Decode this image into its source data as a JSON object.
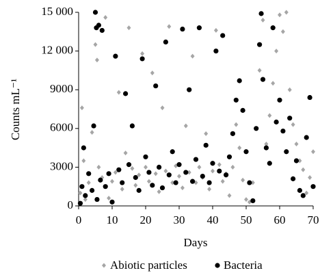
{
  "chart_data": {
    "type": "scatter",
    "ylabel": "Counts mL⁻¹",
    "xlabel": "Days",
    "xlim": [
      0,
      70
    ],
    "xticks": [
      0,
      10,
      20,
      30,
      40,
      50,
      60,
      70
    ],
    "ylim": [
      0,
      15000
    ],
    "yticks": [
      0,
      3000,
      6000,
      9000,
      {
        "value": 12000,
        "label": "12 000"
      },
      {
        "value": 15000,
        "label": "15 000"
      }
    ],
    "grid": false,
    "legend": "bottom",
    "series": [
      {
        "name": "Abiotic particles",
        "color": "#a6a6a6",
        "marker": "diamond",
        "x": [
          0.5,
          1,
          1.5,
          2,
          3,
          4,
          5,
          5.5,
          6,
          7,
          8,
          9,
          10,
          11,
          12,
          13,
          14,
          15,
          16,
          17,
          18,
          19,
          20,
          21,
          22,
          23,
          24,
          25,
          26,
          27,
          28,
          29,
          30,
          31,
          32,
          33,
          34,
          35,
          36,
          37,
          38,
          39,
          40,
          41,
          42,
          43,
          44,
          45,
          46,
          47,
          48,
          49,
          50,
          51,
          52,
          53,
          54,
          55,
          56,
          57,
          58,
          59,
          60,
          61,
          62,
          63,
          64,
          65,
          66,
          67,
          68,
          69,
          70
        ],
        "values": [
          1000,
          7600,
          3500,
          500,
          1800,
          5700,
          12500,
          11300,
          3000,
          2200,
          14600,
          600,
          1900,
          2600,
          8800,
          1300,
          4100,
          13800,
          2900,
          1600,
          2400,
          11800,
          3000,
          1900,
          10300,
          2500,
          1100,
          7600,
          2700,
          13900,
          1800,
          3100,
          2300,
          1400,
          6200,
          2600,
          11600,
          1800,
          3000,
          2200,
          5600,
          1300,
          2700,
          13600,
          3200,
          1900,
          2500,
          800,
          3000,
          6300,
          4500,
          2000,
          500,
          300,
          1800,
          6000,
          10500,
          14400,
          4800,
          7000,
          9500,
          12000,
          14800,
          13500,
          15000,
          9000,
          6300,
          4800,
          3500,
          2800,
          1000,
          2200,
          4200
        ]
      },
      {
        "name": "Bacteria",
        "color": "#000000",
        "marker": "circle",
        "x": [
          0.5,
          1,
          1.5,
          2,
          3,
          4,
          4.5,
          5,
          5.3,
          5.5,
          6,
          6.5,
          7,
          8,
          9,
          10,
          11,
          12,
          13,
          14,
          15,
          16,
          17,
          18,
          19,
          20,
          21,
          22,
          23,
          24,
          25,
          26,
          27,
          28,
          29,
          30,
          31,
          32,
          33,
          34,
          35,
          36,
          37,
          38,
          39,
          40,
          41,
          42,
          43,
          44,
          45,
          46,
          47,
          48,
          49,
          50,
          51,
          52,
          53,
          54,
          54.5,
          55,
          56,
          57,
          58,
          59,
          60,
          61,
          62,
          63,
          64,
          65,
          66,
          67,
          68,
          69,
          70
        ],
        "values": [
          200,
          1500,
          4500,
          800,
          2500,
          1200,
          6200,
          15000,
          13800,
          500,
          14000,
          2000,
          13600,
          1500,
          2500,
          300,
          11600,
          2800,
          1800,
          8700,
          3200,
          6200,
          2200,
          1200,
          11400,
          3800,
          2600,
          1600,
          9300,
          3000,
          1400,
          12700,
          2400,
          4200,
          1800,
          3200,
          13700,
          2600,
          9000,
          1900,
          3600,
          13800,
          2300,
          4700,
          1800,
          3300,
          12000,
          2700,
          13200,
          2400,
          3800,
          5600,
          8200,
          9700,
          7400,
          4200,
          1800,
          400,
          6000,
          12500,
          14900,
          9800,
          4500,
          3300,
          13800,
          6500,
          8200,
          5800,
          4200,
          6800,
          2100,
          3500,
          1200,
          800,
          5300,
          8400,
          1500
        ]
      }
    ]
  }
}
